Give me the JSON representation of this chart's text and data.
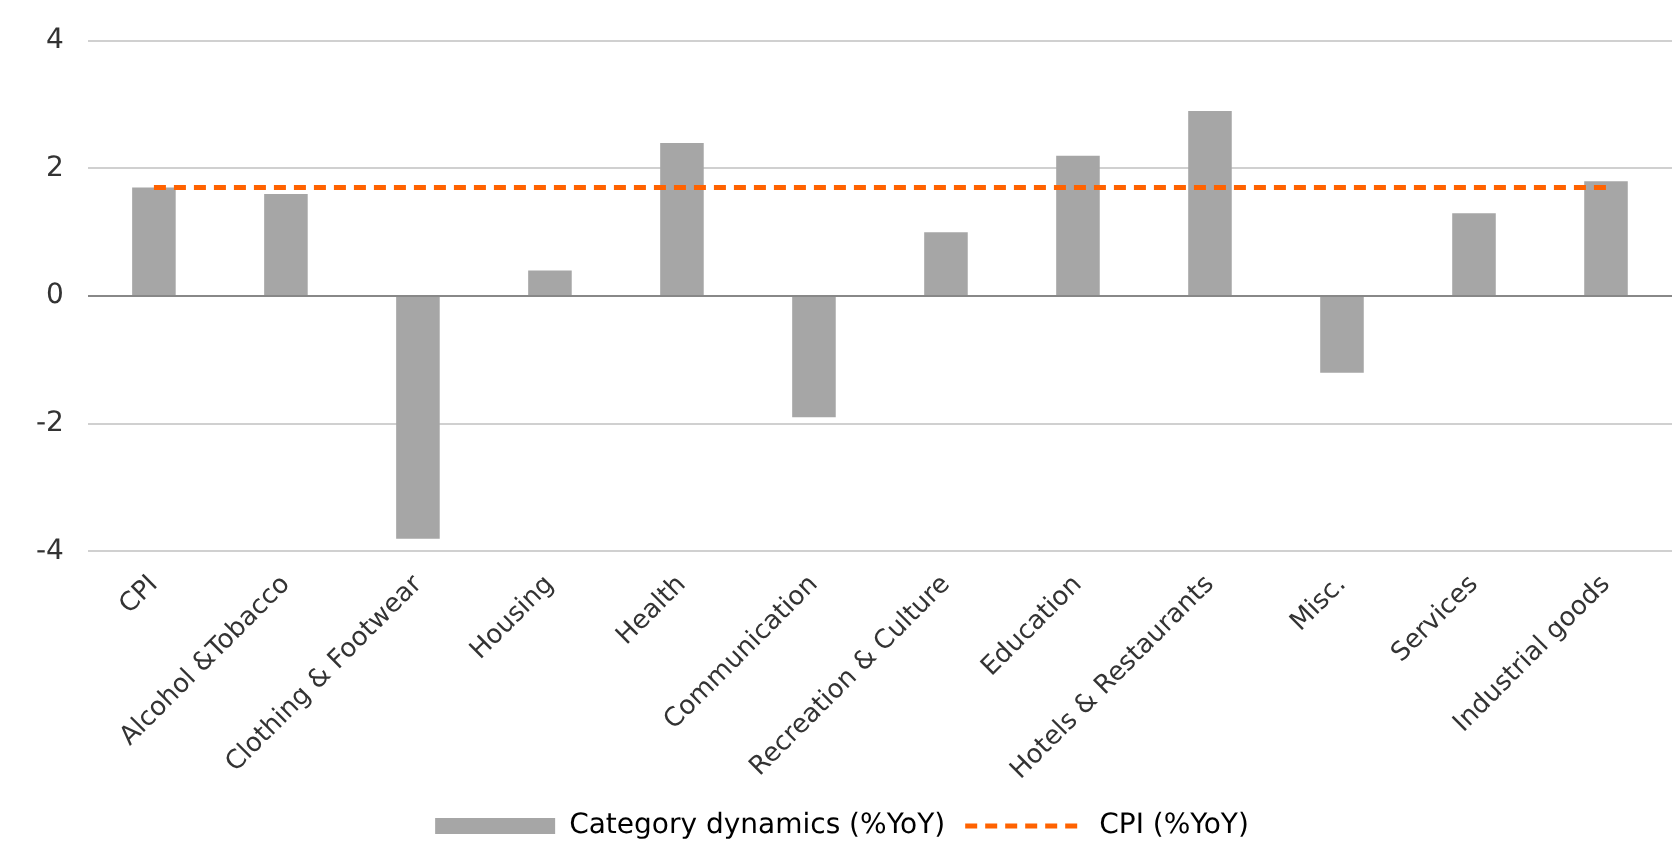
{
  "chart_data": {
    "type": "bar",
    "categories": [
      "CPI",
      "Alcohol &Tobacco",
      "Clothing & Footwear",
      "Housing",
      "Health",
      "Communication",
      "Recreation & Culture",
      "Education",
      "Hotels & Restaurants",
      "Misc.",
      "Services",
      "Industrial goods"
    ],
    "series": [
      {
        "name": "Category dynamics (%YoY)",
        "color": "#a6a6a6",
        "values": [
          1.7,
          1.6,
          -3.8,
          0.4,
          2.4,
          -1.9,
          1.0,
          2.2,
          2.9,
          -1.2,
          1.3,
          1.8
        ]
      },
      {
        "name": "CPI (%YoY)",
        "type": "line",
        "color": "#ff6200",
        "line_style": "dashed",
        "marker": "none",
        "values": [
          1.7,
          1.7,
          1.7,
          1.7,
          1.7,
          1.7,
          1.7,
          1.7,
          1.7,
          1.7,
          1.7,
          1.7
        ]
      }
    ],
    "ylim": [
      -4,
      4
    ],
    "yticks": [
      -4,
      -2,
      0,
      2,
      4
    ],
    "grid": "y",
    "legend": "bottom"
  }
}
